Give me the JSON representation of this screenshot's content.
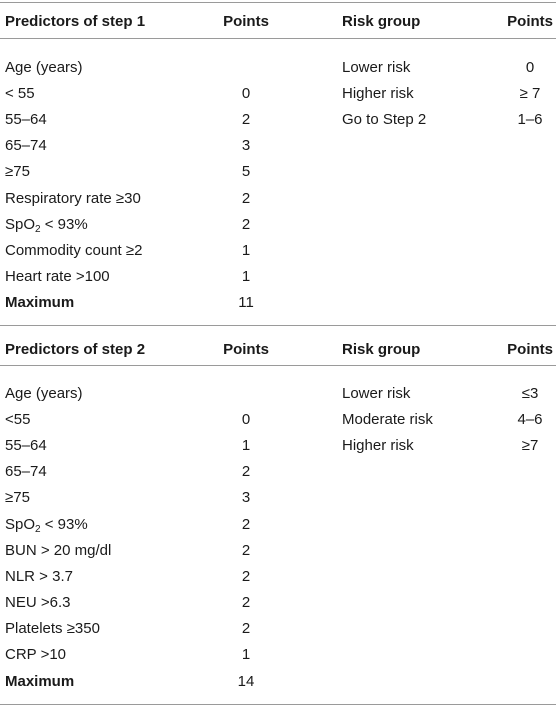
{
  "section1": {
    "headers": {
      "predictors": "Predictors of step 1",
      "points": "Points",
      "risk_group": "Risk group",
      "risk_points": "Points"
    },
    "rows": [
      {
        "label": "Age (years)",
        "points": ""
      },
      {
        "label": "< 55",
        "points": "0"
      },
      {
        "label": "55–64",
        "points": "2"
      },
      {
        "label": "65–74",
        "points": "3"
      },
      {
        "label": "≥75",
        "points": "5"
      },
      {
        "label": "Respiratory rate ≥30",
        "points": "2"
      },
      {
        "label_pre": "SpO",
        "label_sub": "2",
        "label_post": " < 93%",
        "points": "2"
      },
      {
        "label": "Commodity count ≥2",
        "points": "1"
      },
      {
        "label": "Heart rate >100",
        "points": "1"
      }
    ],
    "maximum": {
      "label": "Maximum",
      "points": "11"
    },
    "risk_groups": [
      {
        "label": "Lower risk",
        "points": "0"
      },
      {
        "label": "Higher risk",
        "points": "≥ 7"
      },
      {
        "label": "Go to Step 2",
        "points": "1–6"
      }
    ]
  },
  "section2": {
    "headers": {
      "predictors": "Predictors of step 2",
      "points": "Points",
      "risk_group": "Risk group",
      "risk_points": "Points"
    },
    "rows": [
      {
        "label": "Age (years)",
        "points": ""
      },
      {
        "label": "<55",
        "points": "0"
      },
      {
        "label": "55–64",
        "points": "1"
      },
      {
        "label": "65–74",
        "points": "2"
      },
      {
        "label": "≥75",
        "points": "3"
      },
      {
        "label_pre": "SpO",
        "label_sub": "2",
        "label_post": " < 93%",
        "points": "2"
      },
      {
        "label": "BUN > 20 mg/dl",
        "points": "2"
      },
      {
        "label": "NLR > 3.7",
        "points": "2"
      },
      {
        "label": "NEU >6.3",
        "points": "2"
      },
      {
        "label": "Platelets ≥350",
        "points": "2"
      },
      {
        "label": "CRP >10",
        "points": "1"
      }
    ],
    "maximum": {
      "label": "Maximum",
      "points": "14"
    },
    "risk_groups": [
      {
        "label": "Lower risk",
        "points": "≤3"
      },
      {
        "label": "Moderate risk",
        "points": "4–6"
      },
      {
        "label": "Higher risk",
        "points": "≥7"
      }
    ]
  }
}
